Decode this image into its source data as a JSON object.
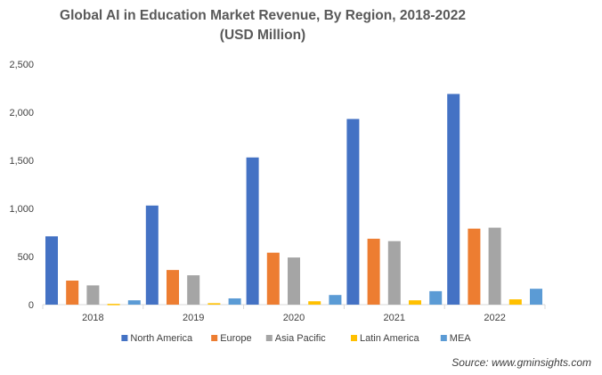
{
  "chart_data": {
    "type": "bar",
    "title": "Global AI in Education Market Revenue, By Region, 2018-2022",
    "subtitle": "(USD Million)",
    "xlabel": "",
    "ylabel": "",
    "categories": [
      "2018",
      "2019",
      "2020",
      "2021",
      "2022"
    ],
    "y_ticks": [
      "0",
      "500",
      "1,000",
      "1,500",
      "2,000",
      "2,500"
    ],
    "ylim": [
      0,
      2500
    ],
    "grid": false,
    "legend_position": "bottom",
    "series": [
      {
        "name": "North America",
        "color": "#4472C4",
        "values": [
          710,
          1030,
          1530,
          1930,
          2190
        ]
      },
      {
        "name": "Europe",
        "color": "#ED7D31",
        "values": [
          250,
          360,
          540,
          685,
          790
        ]
      },
      {
        "name": "Asia Pacific",
        "color": "#A5A5A5",
        "values": [
          200,
          305,
          490,
          660,
          800
        ]
      },
      {
        "name": "Latin America",
        "color": "#FFC000",
        "values": [
          8,
          15,
          35,
          45,
          55
        ]
      },
      {
        "name": "MEA",
        "color": "#5B9BD5",
        "values": [
          45,
          65,
          100,
          140,
          165
        ]
      }
    ],
    "source": "Source: www.gminsights.com"
  }
}
